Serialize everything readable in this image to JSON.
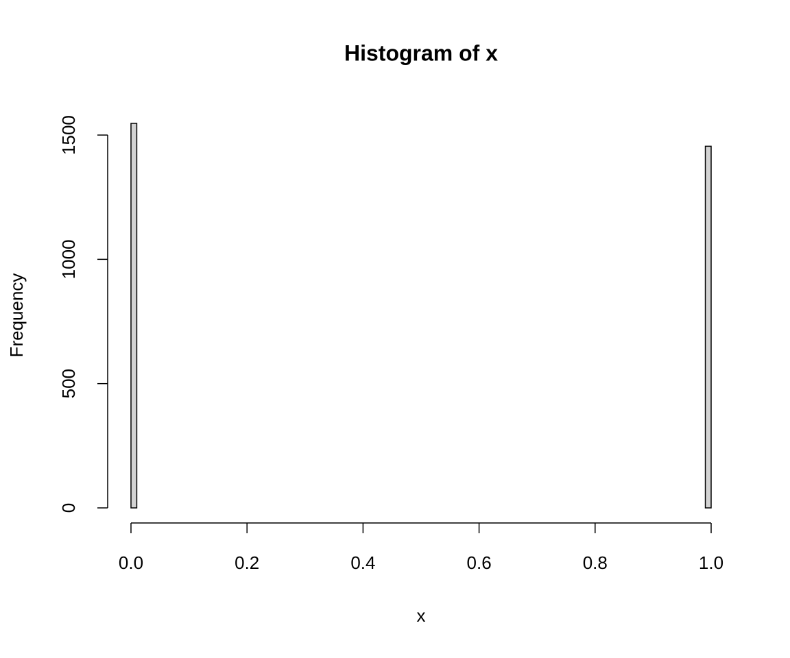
{
  "chart_data": {
    "type": "histogram",
    "title": "Histogram of x",
    "x_label": "x",
    "y_label": "Frequency",
    "bins": [
      0,
      0.01,
      0.02,
      0.03,
      0.04,
      0.05,
      0.06,
      0.07,
      0.08,
      0.09,
      0.1,
      0.11,
      0.12,
      0.13,
      0.14,
      0.15,
      0.16,
      0.17,
      0.18,
      0.19,
      0.2,
      0.21,
      0.22,
      0.23,
      0.24,
      0.25,
      0.26,
      0.27,
      0.28,
      0.29,
      0.3,
      0.31,
      0.32,
      0.33,
      0.34,
      0.35,
      0.36,
      0.37,
      0.38,
      0.39,
      0.4,
      0.41,
      0.42,
      0.43,
      0.44,
      0.45,
      0.46,
      0.47,
      0.48,
      0.49,
      0.5,
      0.51,
      0.52,
      0.53,
      0.54,
      0.55,
      0.56,
      0.57,
      0.58,
      0.59,
      0.6,
      0.61,
      0.62,
      0.63,
      0.64,
      0.65,
      0.66,
      0.67,
      0.68,
      0.69,
      0.7,
      0.71,
      0.72,
      0.73,
      0.74,
      0.75,
      0.76,
      0.77,
      0.78,
      0.79,
      0.8,
      0.81,
      0.82,
      0.83,
      0.84,
      0.85,
      0.86,
      0.87,
      0.88,
      0.89,
      0.9,
      0.91,
      0.92,
      0.93,
      0.94,
      0.95,
      0.96,
      0.97,
      0.98,
      0.99,
      1
    ],
    "counts": [
      1547,
      0,
      0,
      0,
      0,
      0,
      0,
      0,
      0,
      0,
      0,
      0,
      0,
      0,
      0,
      0,
      0,
      0,
      0,
      0,
      0,
      0,
      0,
      0,
      0,
      0,
      0,
      0,
      0,
      0,
      0,
      0,
      0,
      0,
      0,
      0,
      0,
      0,
      0,
      0,
      0,
      0,
      0,
      0,
      0,
      0,
      0,
      0,
      0,
      0,
      0,
      0,
      0,
      0,
      0,
      0,
      0,
      0,
      0,
      0,
      0,
      0,
      0,
      0,
      0,
      0,
      0,
      0,
      0,
      0,
      0,
      0,
      0,
      0,
      0,
      0,
      0,
      0,
      0,
      0,
      0,
      0,
      0,
      0,
      0,
      0,
      0,
      0,
      0,
      0,
      0,
      0,
      0,
      0,
      0,
      0,
      0,
      0,
      0,
      1455
    ],
    "color": "#d3d3d3",
    "xlim": [
      0,
      1
    ],
    "xticks": [
      {
        "value": 0,
        "label": "0.0"
      },
      {
        "value": 0.2,
        "label": "0.2"
      },
      {
        "value": 0.4,
        "label": "0.4"
      },
      {
        "value": 0.6,
        "label": "0.6"
      },
      {
        "value": 0.8,
        "label": "0.8"
      },
      {
        "value": 1,
        "label": "1.0"
      }
    ],
    "ylim": [
      0,
      1547
    ],
    "yticks": [
      0,
      500,
      1000,
      1500
    ]
  }
}
